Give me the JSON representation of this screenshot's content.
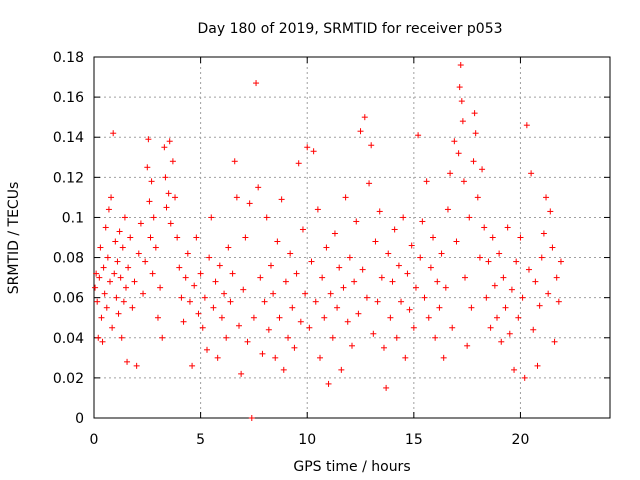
{
  "chart_data": {
    "type": "scatter",
    "title": "Day 180 of 2019, SRMTID for receiver p053",
    "xlabel": "GPS time / hours",
    "ylabel": "SRMTID / TECUs",
    "xlim": [
      0,
      24.2
    ],
    "ylim": [
      0,
      0.18
    ],
    "x_ticks": [
      0,
      5,
      10,
      15,
      20
    ],
    "x_tick_labels": [
      "0",
      "5",
      "10",
      "15",
      "20"
    ],
    "y_ticks": [
      0,
      0.02,
      0.04,
      0.06,
      0.08,
      0.1,
      0.12,
      0.14,
      0.16,
      0.18
    ],
    "y_tick_labels": [
      "0",
      "0.02",
      "0.04",
      "0.06",
      "0.08",
      "0.1",
      "0.12",
      "0.14",
      "0.16",
      "0.18"
    ],
    "grid": true,
    "marker": "+",
    "color": "#ff0000",
    "series": [
      {
        "name": "SRMTID",
        "points": [
          [
            0.05,
            0.065
          ],
          [
            0.1,
            0.072
          ],
          [
            0.15,
            0.058
          ],
          [
            0.2,
            0.04
          ],
          [
            0.25,
            0.07
          ],
          [
            0.3,
            0.085
          ],
          [
            0.35,
            0.05
          ],
          [
            0.4,
            0.038
          ],
          [
            0.45,
            0.075
          ],
          [
            0.5,
            0.062
          ],
          [
            0.55,
            0.095
          ],
          [
            0.6,
            0.055
          ],
          [
            0.65,
            0.08
          ],
          [
            0.7,
            0.104
          ],
          [
            0.75,
            0.068
          ],
          [
            0.8,
            0.11
          ],
          [
            0.85,
            0.045
          ],
          [
            0.9,
            0.142
          ],
          [
            0.95,
            0.072
          ],
          [
            1.0,
            0.088
          ],
          [
            1.05,
            0.06
          ],
          [
            1.1,
            0.078
          ],
          [
            1.15,
            0.052
          ],
          [
            1.2,
            0.093
          ],
          [
            1.25,
            0.07
          ],
          [
            1.3,
            0.04
          ],
          [
            1.35,
            0.085
          ],
          [
            1.4,
            0.058
          ],
          [
            1.45,
            0.1
          ],
          [
            1.5,
            0.065
          ],
          [
            1.55,
            0.028
          ],
          [
            1.6,
            0.075
          ],
          [
            1.7,
            0.09
          ],
          [
            1.8,
            0.055
          ],
          [
            1.9,
            0.068
          ],
          [
            2.0,
            0.026
          ],
          [
            2.1,
            0.082
          ],
          [
            2.2,
            0.097
          ],
          [
            2.3,
            0.062
          ],
          [
            2.4,
            0.078
          ],
          [
            2.5,
            0.125
          ],
          [
            2.55,
            0.139
          ],
          [
            2.6,
            0.108
          ],
          [
            2.65,
            0.09
          ],
          [
            2.7,
            0.118
          ],
          [
            2.75,
            0.072
          ],
          [
            2.8,
            0.1
          ],
          [
            2.9,
            0.085
          ],
          [
            3.0,
            0.05
          ],
          [
            3.1,
            0.065
          ],
          [
            3.2,
            0.04
          ],
          [
            3.3,
            0.135
          ],
          [
            3.35,
            0.12
          ],
          [
            3.4,
            0.105
          ],
          [
            3.5,
            0.112
          ],
          [
            3.55,
            0.138
          ],
          [
            3.6,
            0.097
          ],
          [
            3.7,
            0.128
          ],
          [
            3.8,
            0.11
          ],
          [
            3.9,
            0.09
          ],
          [
            4.0,
            0.075
          ],
          [
            4.1,
            0.06
          ],
          [
            4.2,
            0.048
          ],
          [
            4.3,
            0.07
          ],
          [
            4.4,
            0.082
          ],
          [
            4.5,
            0.058
          ],
          [
            4.6,
            0.026
          ],
          [
            4.7,
            0.066
          ],
          [
            4.8,
            0.09
          ],
          [
            4.9,
            0.052
          ],
          [
            5.0,
            0.072
          ],
          [
            5.1,
            0.045
          ],
          [
            5.2,
            0.06
          ],
          [
            5.3,
            0.034
          ],
          [
            5.4,
            0.08
          ],
          [
            5.5,
            0.1
          ],
          [
            5.6,
            0.055
          ],
          [
            5.7,
            0.068
          ],
          [
            5.8,
            0.03
          ],
          [
            5.9,
            0.076
          ],
          [
            6.0,
            0.05
          ],
          [
            6.1,
            0.062
          ],
          [
            6.2,
            0.04
          ],
          [
            6.3,
            0.085
          ],
          [
            6.4,
            0.058
          ],
          [
            6.5,
            0.072
          ],
          [
            6.6,
            0.128
          ],
          [
            6.7,
            0.11
          ],
          [
            6.8,
            0.046
          ],
          [
            6.9,
            0.022
          ],
          [
            7.0,
            0.064
          ],
          [
            7.1,
            0.09
          ],
          [
            7.2,
            0.038
          ],
          [
            7.3,
            0.107
          ],
          [
            7.4,
            0.0
          ],
          [
            7.5,
            0.05
          ],
          [
            7.6,
            0.167
          ],
          [
            7.7,
            0.115
          ],
          [
            7.8,
            0.07
          ],
          [
            7.9,
            0.032
          ],
          [
            8.0,
            0.058
          ],
          [
            8.1,
            0.1
          ],
          [
            8.2,
            0.044
          ],
          [
            8.3,
            0.076
          ],
          [
            8.4,
            0.062
          ],
          [
            8.5,
            0.03
          ],
          [
            8.6,
            0.088
          ],
          [
            8.7,
            0.05
          ],
          [
            8.8,
            0.109
          ],
          [
            8.9,
            0.024
          ],
          [
            9.0,
            0.068
          ],
          [
            9.1,
            0.04
          ],
          [
            9.2,
            0.082
          ],
          [
            9.3,
            0.055
          ],
          [
            9.4,
            0.035
          ],
          [
            9.5,
            0.072
          ],
          [
            9.6,
            0.127
          ],
          [
            9.7,
            0.048
          ],
          [
            9.8,
            0.094
          ],
          [
            9.9,
            0.062
          ],
          [
            10.0,
            0.135
          ],
          [
            10.1,
            0.045
          ],
          [
            10.2,
            0.078
          ],
          [
            10.3,
            0.133
          ],
          [
            10.4,
            0.058
          ],
          [
            10.5,
            0.104
          ],
          [
            10.6,
            0.03
          ],
          [
            10.7,
            0.07
          ],
          [
            10.8,
            0.05
          ],
          [
            10.9,
            0.085
          ],
          [
            11.0,
            0.017
          ],
          [
            11.1,
            0.062
          ],
          [
            11.2,
            0.04
          ],
          [
            11.3,
            0.092
          ],
          [
            11.4,
            0.055
          ],
          [
            11.5,
            0.075
          ],
          [
            11.6,
            0.024
          ],
          [
            11.7,
            0.065
          ],
          [
            11.8,
            0.11
          ],
          [
            11.9,
            0.048
          ],
          [
            12.0,
            0.08
          ],
          [
            12.1,
            0.036
          ],
          [
            12.2,
            0.068
          ],
          [
            12.3,
            0.098
          ],
          [
            12.4,
            0.052
          ],
          [
            12.5,
            0.143
          ],
          [
            12.6,
            0.074
          ],
          [
            12.7,
            0.15
          ],
          [
            12.8,
            0.06
          ],
          [
            12.9,
            0.117
          ],
          [
            13.0,
            0.136
          ],
          [
            13.1,
            0.042
          ],
          [
            13.2,
            0.088
          ],
          [
            13.3,
            0.058
          ],
          [
            13.4,
            0.103
          ],
          [
            13.5,
            0.07
          ],
          [
            13.6,
            0.035
          ],
          [
            13.7,
            0.015
          ],
          [
            13.8,
            0.082
          ],
          [
            13.9,
            0.05
          ],
          [
            14.0,
            0.068
          ],
          [
            14.1,
            0.094
          ],
          [
            14.2,
            0.04
          ],
          [
            14.3,
            0.076
          ],
          [
            14.4,
            0.058
          ],
          [
            14.5,
            0.1
          ],
          [
            14.6,
            0.03
          ],
          [
            14.7,
            0.072
          ],
          [
            14.8,
            0.054
          ],
          [
            14.9,
            0.086
          ],
          [
            15.0,
            0.045
          ],
          [
            15.1,
            0.065
          ],
          [
            15.2,
            0.141
          ],
          [
            15.3,
            0.08
          ],
          [
            15.4,
            0.098
          ],
          [
            15.5,
            0.06
          ],
          [
            15.6,
            0.118
          ],
          [
            15.7,
            0.05
          ],
          [
            15.8,
            0.075
          ],
          [
            15.9,
            0.09
          ],
          [
            16.0,
            0.04
          ],
          [
            16.1,
            0.068
          ],
          [
            16.2,
            0.055
          ],
          [
            16.3,
            0.082
          ],
          [
            16.4,
            0.03
          ],
          [
            16.5,
            0.065
          ],
          [
            16.6,
            0.104
          ],
          [
            16.7,
            0.122
          ],
          [
            16.8,
            0.045
          ],
          [
            16.9,
            0.138
          ],
          [
            17.0,
            0.088
          ],
          [
            17.1,
            0.132
          ],
          [
            17.15,
            0.165
          ],
          [
            17.2,
            0.176
          ],
          [
            17.25,
            0.158
          ],
          [
            17.3,
            0.148
          ],
          [
            17.35,
            0.118
          ],
          [
            17.4,
            0.07
          ],
          [
            17.5,
            0.036
          ],
          [
            17.6,
            0.1
          ],
          [
            17.7,
            0.055
          ],
          [
            17.8,
            0.128
          ],
          [
            17.85,
            0.152
          ],
          [
            17.9,
            0.142
          ],
          [
            18.0,
            0.11
          ],
          [
            18.1,
            0.08
          ],
          [
            18.2,
            0.124
          ],
          [
            18.3,
            0.095
          ],
          [
            18.4,
            0.06
          ],
          [
            18.5,
            0.078
          ],
          [
            18.6,
            0.045
          ],
          [
            18.7,
            0.09
          ],
          [
            18.8,
            0.066
          ],
          [
            18.9,
            0.05
          ],
          [
            19.0,
            0.082
          ],
          [
            19.1,
            0.038
          ],
          [
            19.2,
            0.07
          ],
          [
            19.3,
            0.055
          ],
          [
            19.4,
            0.095
          ],
          [
            19.5,
            0.042
          ],
          [
            19.6,
            0.064
          ],
          [
            19.7,
            0.024
          ],
          [
            19.8,
            0.078
          ],
          [
            19.9,
            0.05
          ],
          [
            20.0,
            0.09
          ],
          [
            20.1,
            0.06
          ],
          [
            20.2,
            0.02
          ],
          [
            20.3,
            0.146
          ],
          [
            20.4,
            0.074
          ],
          [
            20.5,
            0.122
          ],
          [
            20.6,
            0.044
          ],
          [
            20.7,
            0.068
          ],
          [
            20.8,
            0.026
          ],
          [
            20.9,
            0.056
          ],
          [
            21.0,
            0.08
          ],
          [
            21.1,
            0.092
          ],
          [
            21.2,
            0.11
          ],
          [
            21.3,
            0.062
          ],
          [
            21.4,
            0.103
          ],
          [
            21.5,
            0.085
          ],
          [
            21.6,
            0.038
          ],
          [
            21.7,
            0.07
          ],
          [
            21.8,
            0.058
          ],
          [
            21.9,
            0.078
          ]
        ]
      }
    ]
  }
}
